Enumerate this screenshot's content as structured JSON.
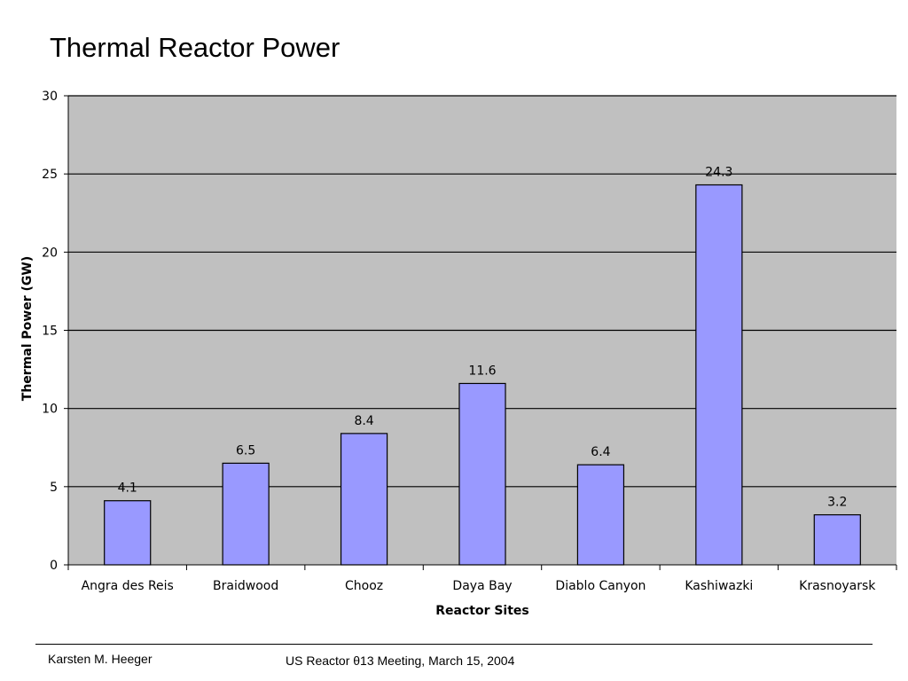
{
  "slide": {
    "title": "Thermal Reactor Power",
    "footer_left": "Karsten M. Heeger",
    "footer_center": "US Reactor θ13 Meeting, March 15, 2004"
  },
  "colors": {
    "plot_background": "#c0c0c0",
    "bar_fill": "#9999ff",
    "bar_stroke": "#000000",
    "gridline": "#000000"
  },
  "chart_data": {
    "type": "bar",
    "title": "",
    "xlabel": "Reactor Sites",
    "ylabel": "Thermal Power (GW)",
    "ylim": [
      0,
      30
    ],
    "yticks": [
      0,
      5,
      10,
      15,
      20,
      25,
      30
    ],
    "grid": true,
    "categories": [
      "Angra des Reis",
      "Braidwood",
      "Chooz",
      "Daya Bay",
      "Diablo Canyon",
      "Kashiwazki",
      "Krasnoyarsk"
    ],
    "values": [
      4.1,
      6.5,
      8.4,
      11.6,
      6.4,
      24.3,
      3.2
    ],
    "data_labels": [
      "4.1",
      "6.5",
      "8.4",
      "11.6",
      "6.4",
      "24.3",
      "3.2"
    ]
  }
}
